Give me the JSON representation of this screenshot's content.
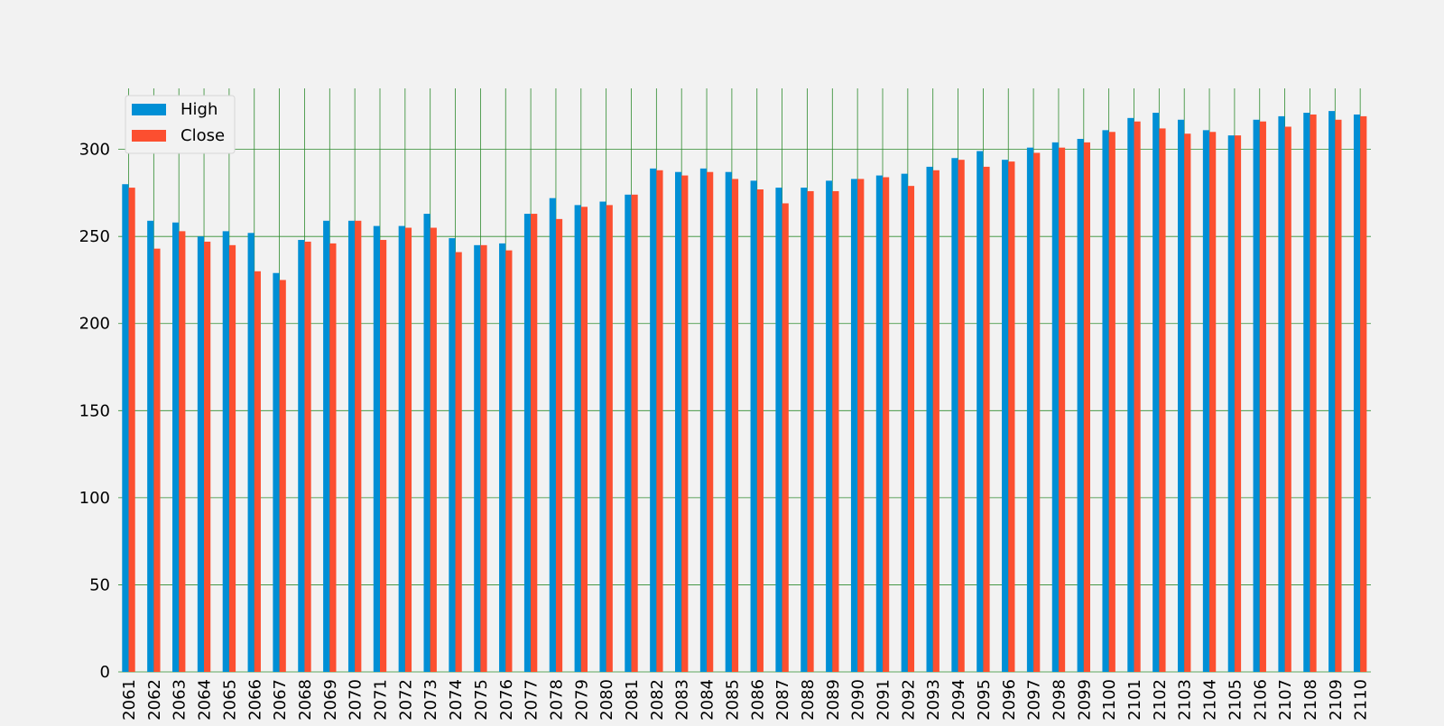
{
  "chart_data": {
    "type": "bar",
    "title": "",
    "xlabel": "",
    "ylabel": "",
    "ylim": [
      0,
      335
    ],
    "yticks": [
      0,
      50,
      100,
      150,
      200,
      250,
      300
    ],
    "grid": true,
    "legend_position": "top-left",
    "categories": [
      "2061",
      "2062",
      "2063",
      "2064",
      "2065",
      "2066",
      "2067",
      "2068",
      "2069",
      "2070",
      "2071",
      "2072",
      "2073",
      "2074",
      "2075",
      "2076",
      "2077",
      "2078",
      "2079",
      "2080",
      "2081",
      "2082",
      "2083",
      "2084",
      "2085",
      "2086",
      "2087",
      "2088",
      "2089",
      "2090",
      "2091",
      "2092",
      "2093",
      "2094",
      "2095",
      "2096",
      "2097",
      "2098",
      "2099",
      "2100",
      "2101",
      "2102",
      "2103",
      "2104",
      "2105",
      "2106",
      "2107",
      "2108",
      "2109",
      "2110"
    ],
    "series": [
      {
        "name": "High",
        "color": "#008fd5",
        "values": [
          280,
          259,
          258,
          250,
          253,
          252,
          229,
          248,
          259,
          259,
          256,
          256,
          263,
          249,
          245,
          246,
          263,
          272,
          268,
          270,
          274,
          289,
          287,
          289,
          287,
          282,
          278,
          278,
          282,
          283,
          285,
          286,
          290,
          295,
          299,
          294,
          301,
          304,
          306,
          311,
          318,
          321,
          317,
          311,
          308,
          317,
          319,
          321,
          322,
          320
        ]
      },
      {
        "name": "Close",
        "color": "#fc4f30",
        "values": [
          278,
          243,
          253,
          247,
          245,
          230,
          225,
          247,
          246,
          259,
          248,
          255,
          255,
          241,
          245,
          242,
          263,
          260,
          267,
          268,
          274,
          288,
          285,
          287,
          283,
          277,
          269,
          276,
          276,
          283,
          284,
          279,
          288,
          294,
          290,
          293,
          298,
          301,
          304,
          310,
          316,
          312,
          309,
          310,
          308,
          316,
          313,
          320,
          317,
          319
        ]
      }
    ]
  }
}
